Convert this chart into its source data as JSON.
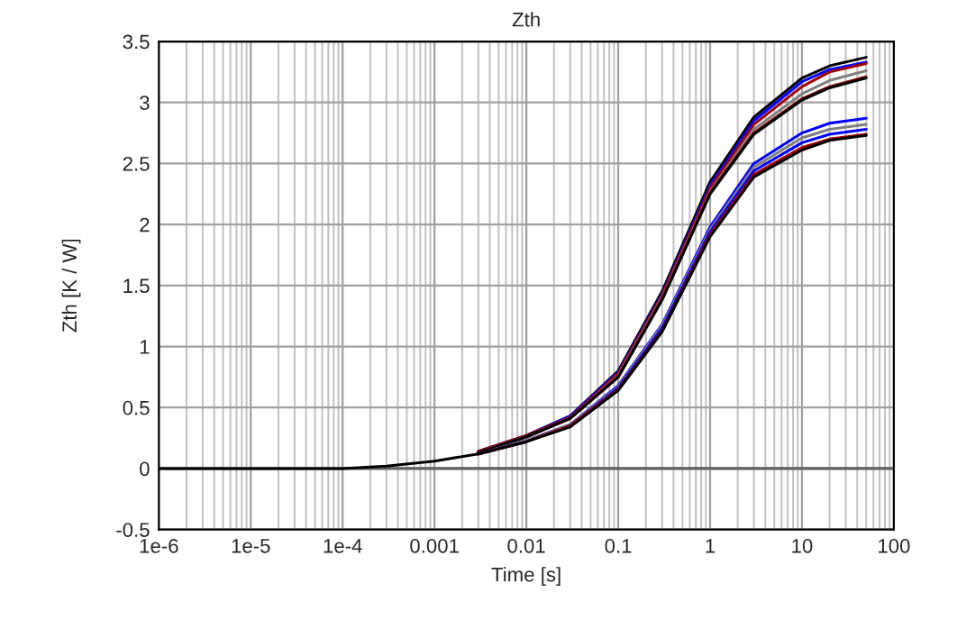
{
  "chart_data": {
    "type": "line",
    "title": "Zth",
    "xlabel": "Time [s]",
    "ylabel": "Zth [K / W]",
    "x": [
      1e-06,
      0.0001,
      0.0003,
      0.001,
      0.003,
      0.01,
      0.03,
      0.1,
      0.3,
      1,
      3,
      10,
      20,
      50
    ],
    "series": [
      {
        "color": "#000000",
        "values": [
          null,
          null,
          null,
          null,
          0.14,
          0.27,
          0.43,
          0.8,
          1.45,
          2.35,
          2.88,
          3.2,
          3.3,
          3.37
        ]
      },
      {
        "color": "#0000ff",
        "values": [
          null,
          null,
          null,
          null,
          0.14,
          0.27,
          0.43,
          0.79,
          1.43,
          2.32,
          2.85,
          3.17,
          3.27,
          3.33
        ]
      },
      {
        "color": "#a00000",
        "values": [
          null,
          null,
          null,
          null,
          0.14,
          0.27,
          0.42,
          0.78,
          1.42,
          2.3,
          2.82,
          3.13,
          3.25,
          3.32
        ]
      },
      {
        "color": "#808080",
        "values": [
          null,
          null,
          null,
          null,
          0.13,
          0.26,
          0.41,
          0.76,
          1.4,
          2.27,
          2.78,
          3.07,
          3.18,
          3.26
        ]
      },
      {
        "color": "#8b0000",
        "values": [
          null,
          null,
          null,
          null,
          0.13,
          0.26,
          0.41,
          0.75,
          1.39,
          2.26,
          2.75,
          3.03,
          3.13,
          3.21
        ]
      },
      {
        "color": "#000000",
        "values": [
          null,
          null,
          null,
          null,
          0.13,
          0.26,
          0.41,
          0.75,
          1.38,
          2.25,
          2.74,
          3.02,
          3.12,
          3.2
        ]
      },
      {
        "color": "#0000ff",
        "values": [
          null,
          null,
          null,
          null,
          0.12,
          0.23,
          0.36,
          0.68,
          1.18,
          1.98,
          2.5,
          2.75,
          2.83,
          2.87
        ]
      },
      {
        "color": "#808080",
        "values": [
          null,
          null,
          null,
          null,
          0.12,
          0.23,
          0.36,
          0.67,
          1.17,
          1.96,
          2.47,
          2.71,
          2.78,
          2.82
        ]
      },
      {
        "color": "#0000ff",
        "values": [
          null,
          null,
          null,
          null,
          0.12,
          0.22,
          0.35,
          0.66,
          1.15,
          1.94,
          2.44,
          2.67,
          2.74,
          2.78
        ]
      },
      {
        "color": "#a00000",
        "values": [
          null,
          null,
          null,
          null,
          0.12,
          0.22,
          0.35,
          0.65,
          1.13,
          1.92,
          2.41,
          2.63,
          2.7,
          2.74
        ]
      },
      {
        "color": "#000000",
        "values": [
          0,
          0,
          0.02,
          0.06,
          0.12,
          0.22,
          0.34,
          0.64,
          1.12,
          1.9,
          2.39,
          2.61,
          2.69,
          2.73
        ]
      }
    ],
    "log": "x",
    "xlim": [
      1e-06,
      100
    ],
    "xticks": [
      {
        "value": 1e-06,
        "label": "1e-6"
      },
      {
        "value": 1e-05,
        "label": "1e-5"
      },
      {
        "value": 0.0001,
        "label": "1e-4"
      },
      0.001,
      0.01,
      0.1,
      1,
      10,
      100
    ],
    "ylim": [
      -0.5,
      3.5
    ],
    "yticks": [
      -0.5,
      0,
      0.5,
      1,
      1.5,
      2,
      2.5,
      3,
      3.5
    ],
    "grid": true,
    "ref_lines": [
      {
        "axis": "y",
        "value": 0,
        "color": "#606060"
      }
    ],
    "marker": "none",
    "line_style": "solid"
  }
}
